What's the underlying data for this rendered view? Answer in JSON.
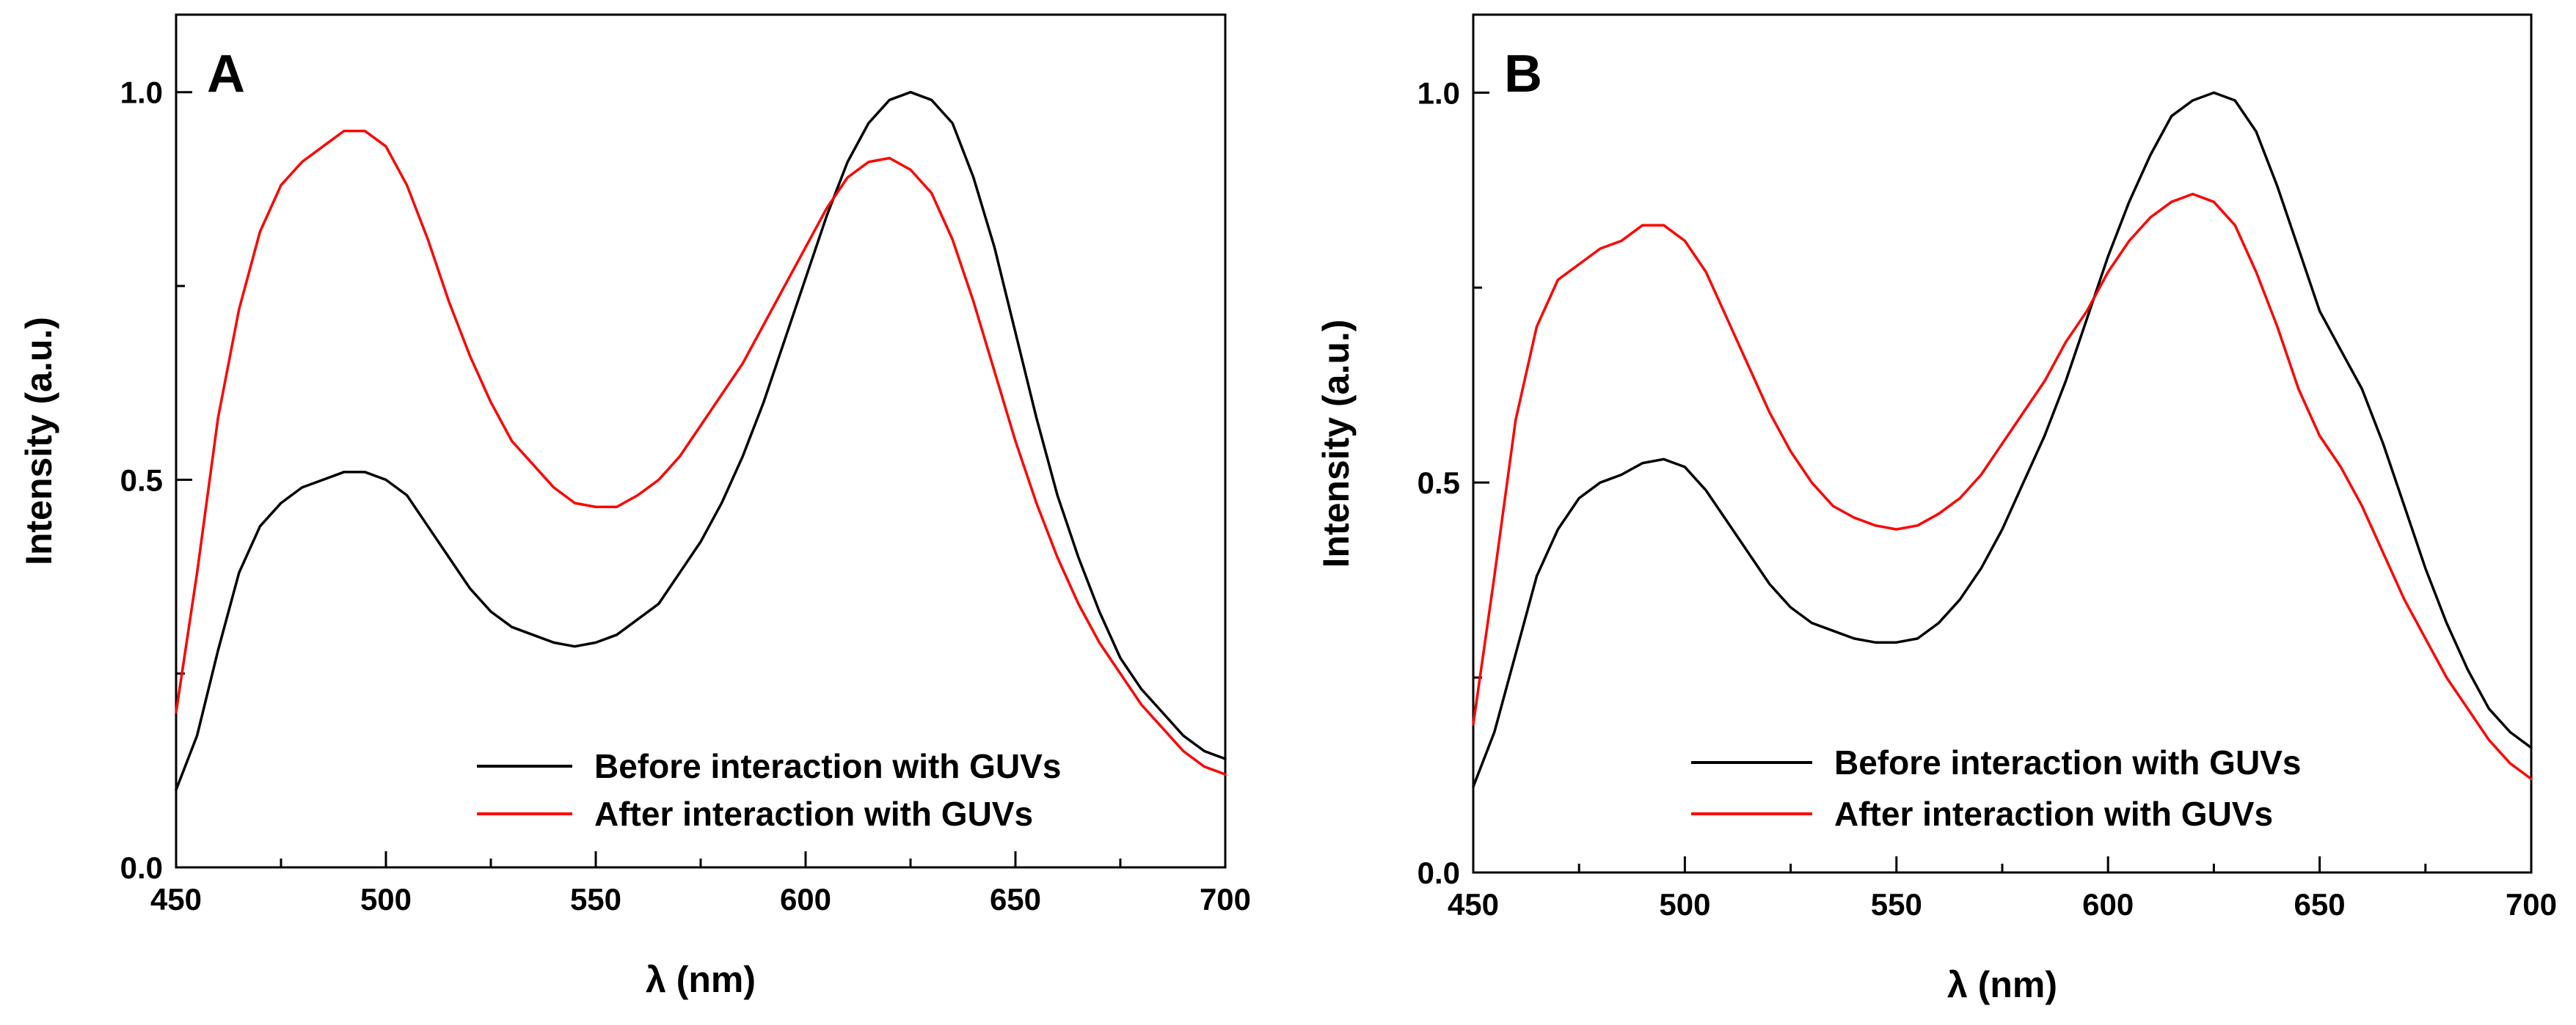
{
  "chart_data": [
    {
      "type": "line",
      "panel_label": "A",
      "xlabel": "λ (nm)",
      "ylabel": "Intensity (a.u.)",
      "xlim": [
        450,
        700
      ],
      "ylim": [
        0.0,
        1.1
      ],
      "x_ticks": [
        450,
        500,
        550,
        600,
        650,
        700
      ],
      "y_ticks": [
        "0.0",
        "0.5",
        "1.0"
      ],
      "grid": false,
      "legend_position": "bottom-right",
      "series": [
        {
          "name": "Before interaction with GUVs",
          "color": "#000000",
          "points": [
            [
              450,
              0.1
            ],
            [
              455,
              0.17
            ],
            [
              460,
              0.28
            ],
            [
              465,
              0.38
            ],
            [
              470,
              0.44
            ],
            [
              475,
              0.47
            ],
            [
              480,
              0.49
            ],
            [
              485,
              0.5
            ],
            [
              490,
              0.51
            ],
            [
              495,
              0.51
            ],
            [
              500,
              0.5
            ],
            [
              505,
              0.48
            ],
            [
              510,
              0.44
            ],
            [
              515,
              0.4
            ],
            [
              520,
              0.36
            ],
            [
              525,
              0.33
            ],
            [
              530,
              0.31
            ],
            [
              535,
              0.3
            ],
            [
              540,
              0.29
            ],
            [
              545,
              0.285
            ],
            [
              550,
              0.29
            ],
            [
              555,
              0.3
            ],
            [
              560,
              0.32
            ],
            [
              565,
              0.34
            ],
            [
              570,
              0.38
            ],
            [
              575,
              0.42
            ],
            [
              580,
              0.47
            ],
            [
              585,
              0.53
            ],
            [
              590,
              0.6
            ],
            [
              595,
              0.68
            ],
            [
              600,
              0.76
            ],
            [
              605,
              0.84
            ],
            [
              610,
              0.91
            ],
            [
              615,
              0.96
            ],
            [
              620,
              0.99
            ],
            [
              625,
              1.0
            ],
            [
              630,
              0.99
            ],
            [
              635,
              0.96
            ],
            [
              640,
              0.89
            ],
            [
              645,
              0.8
            ],
            [
              650,
              0.69
            ],
            [
              655,
              0.58
            ],
            [
              660,
              0.48
            ],
            [
              665,
              0.4
            ],
            [
              670,
              0.33
            ],
            [
              675,
              0.27
            ],
            [
              680,
              0.23
            ],
            [
              685,
              0.2
            ],
            [
              690,
              0.17
            ],
            [
              695,
              0.15
            ],
            [
              700,
              0.14
            ]
          ]
        },
        {
          "name": "After interaction with GUVs",
          "color": "#ff0000",
          "points": [
            [
              450,
              0.2
            ],
            [
              455,
              0.38
            ],
            [
              460,
              0.58
            ],
            [
              465,
              0.72
            ],
            [
              470,
              0.82
            ],
            [
              475,
              0.88
            ],
            [
              480,
              0.91
            ],
            [
              485,
              0.93
            ],
            [
              490,
              0.95
            ],
            [
              495,
              0.95
            ],
            [
              500,
              0.93
            ],
            [
              505,
              0.88
            ],
            [
              510,
              0.81
            ],
            [
              515,
              0.73
            ],
            [
              520,
              0.66
            ],
            [
              525,
              0.6
            ],
            [
              530,
              0.55
            ],
            [
              535,
              0.52
            ],
            [
              540,
              0.49
            ],
            [
              545,
              0.47
            ],
            [
              550,
              0.465
            ],
            [
              555,
              0.465
            ],
            [
              560,
              0.48
            ],
            [
              565,
              0.5
            ],
            [
              570,
              0.53
            ],
            [
              575,
              0.57
            ],
            [
              580,
              0.61
            ],
            [
              585,
              0.65
            ],
            [
              590,
              0.7
            ],
            [
              595,
              0.75
            ],
            [
              600,
              0.8
            ],
            [
              605,
              0.85
            ],
            [
              610,
              0.89
            ],
            [
              615,
              0.91
            ],
            [
              620,
              0.915
            ],
            [
              625,
              0.9
            ],
            [
              630,
              0.87
            ],
            [
              635,
              0.81
            ],
            [
              640,
              0.73
            ],
            [
              645,
              0.64
            ],
            [
              650,
              0.55
            ],
            [
              655,
              0.47
            ],
            [
              660,
              0.4
            ],
            [
              665,
              0.34
            ],
            [
              670,
              0.29
            ],
            [
              675,
              0.25
            ],
            [
              680,
              0.21
            ],
            [
              685,
              0.18
            ],
            [
              690,
              0.15
            ],
            [
              695,
              0.13
            ],
            [
              700,
              0.12
            ]
          ]
        }
      ]
    },
    {
      "type": "line",
      "panel_label": "B",
      "xlabel": "λ (nm)",
      "ylabel": "Intensity (a.u.)",
      "xlim": [
        450,
        700
      ],
      "ylim": [
        0.0,
        1.1
      ],
      "x_ticks": [
        450,
        500,
        550,
        600,
        650,
        700
      ],
      "y_ticks": [
        "0.0",
        "0.5",
        "1.0"
      ],
      "grid": false,
      "legend_position": "bottom-right",
      "series": [
        {
          "name": "Before interaction with GUVs",
          "color": "#000000",
          "points": [
            [
              450,
              0.11
            ],
            [
              455,
              0.18
            ],
            [
              460,
              0.28
            ],
            [
              465,
              0.38
            ],
            [
              470,
              0.44
            ],
            [
              475,
              0.48
            ],
            [
              480,
              0.5
            ],
            [
              485,
              0.51
            ],
            [
              490,
              0.525
            ],
            [
              495,
              0.53
            ],
            [
              500,
              0.52
            ],
            [
              505,
              0.49
            ],
            [
              510,
              0.45
            ],
            [
              515,
              0.41
            ],
            [
              520,
              0.37
            ],
            [
              525,
              0.34
            ],
            [
              530,
              0.32
            ],
            [
              535,
              0.31
            ],
            [
              540,
              0.3
            ],
            [
              545,
              0.295
            ],
            [
              550,
              0.295
            ],
            [
              555,
              0.3
            ],
            [
              560,
              0.32
            ],
            [
              565,
              0.35
            ],
            [
              570,
              0.39
            ],
            [
              575,
              0.44
            ],
            [
              580,
              0.5
            ],
            [
              585,
              0.56
            ],
            [
              590,
              0.63
            ],
            [
              595,
              0.71
            ],
            [
              600,
              0.79
            ],
            [
              605,
              0.86
            ],
            [
              610,
              0.92
            ],
            [
              615,
              0.97
            ],
            [
              620,
              0.99
            ],
            [
              625,
              1.0
            ],
            [
              630,
              0.99
            ],
            [
              635,
              0.95
            ],
            [
              640,
              0.88
            ],
            [
              645,
              0.8
            ],
            [
              650,
              0.72
            ],
            [
              655,
              0.67
            ],
            [
              660,
              0.62
            ],
            [
              665,
              0.55
            ],
            [
              670,
              0.47
            ],
            [
              675,
              0.39
            ],
            [
              680,
              0.32
            ],
            [
              685,
              0.26
            ],
            [
              690,
              0.21
            ],
            [
              695,
              0.18
            ],
            [
              700,
              0.16
            ]
          ]
        },
        {
          "name": "After interaction with GUVs",
          "color": "#ff0000",
          "points": [
            [
              450,
              0.19
            ],
            [
              455,
              0.38
            ],
            [
              460,
              0.58
            ],
            [
              465,
              0.7
            ],
            [
              470,
              0.76
            ],
            [
              475,
              0.78
            ],
            [
              480,
              0.8
            ],
            [
              485,
              0.81
            ],
            [
              490,
              0.83
            ],
            [
              495,
              0.83
            ],
            [
              500,
              0.81
            ],
            [
              505,
              0.77
            ],
            [
              510,
              0.71
            ],
            [
              515,
              0.65
            ],
            [
              520,
              0.59
            ],
            [
              525,
              0.54
            ],
            [
              530,
              0.5
            ],
            [
              535,
              0.47
            ],
            [
              540,
              0.455
            ],
            [
              545,
              0.445
            ],
            [
              550,
              0.44
            ],
            [
              555,
              0.445
            ],
            [
              560,
              0.46
            ],
            [
              565,
              0.48
            ],
            [
              570,
              0.51
            ],
            [
              575,
              0.55
            ],
            [
              580,
              0.59
            ],
            [
              585,
              0.63
            ],
            [
              590,
              0.68
            ],
            [
              595,
              0.72
            ],
            [
              600,
              0.77
            ],
            [
              605,
              0.81
            ],
            [
              610,
              0.84
            ],
            [
              615,
              0.86
            ],
            [
              620,
              0.87
            ],
            [
              625,
              0.86
            ],
            [
              630,
              0.83
            ],
            [
              635,
              0.77
            ],
            [
              640,
              0.7
            ],
            [
              645,
              0.62
            ],
            [
              650,
              0.56
            ],
            [
              655,
              0.52
            ],
            [
              660,
              0.47
            ],
            [
              665,
              0.41
            ],
            [
              670,
              0.35
            ],
            [
              675,
              0.3
            ],
            [
              680,
              0.25
            ],
            [
              685,
              0.21
            ],
            [
              690,
              0.17
            ],
            [
              695,
              0.14
            ],
            [
              700,
              0.12
            ]
          ]
        }
      ]
    }
  ]
}
